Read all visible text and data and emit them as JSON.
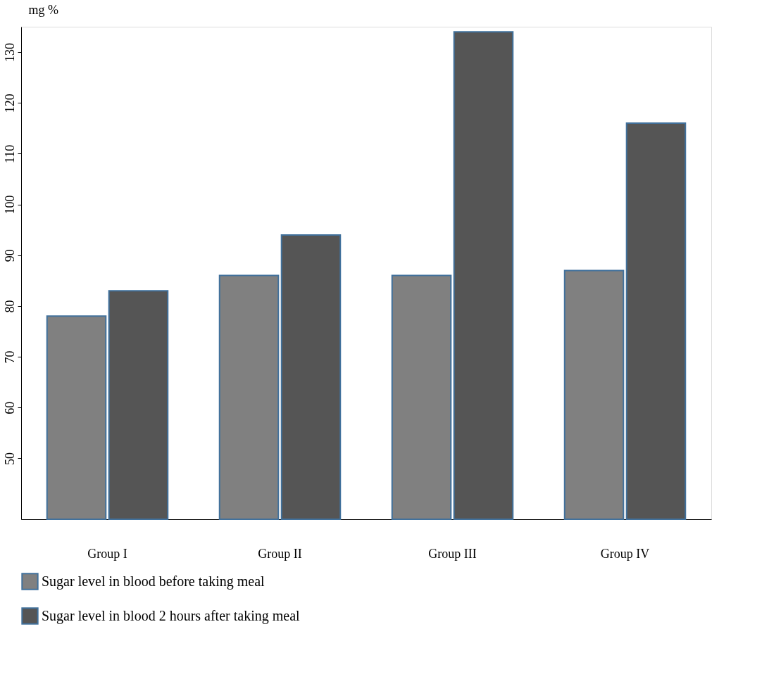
{
  "chart_data": {
    "type": "bar",
    "ylabel": "mg %",
    "categories": [
      "Group I",
      "Group II",
      "Group III",
      "Group IV"
    ],
    "series": [
      {
        "name": "Sugar level in blood before taking meal",
        "color": "#808080",
        "values": [
          78,
          86,
          86,
          87
        ]
      },
      {
        "name": "Sugar level in blood 2 hours after taking meal",
        "color": "#555555",
        "values": [
          83,
          94,
          134,
          116
        ]
      }
    ],
    "ylim": [
      38,
      135
    ],
    "yticks": [
      50,
      60,
      70,
      80,
      90,
      100,
      110,
      120,
      130
    ],
    "grid": false,
    "legend": "bottom"
  }
}
